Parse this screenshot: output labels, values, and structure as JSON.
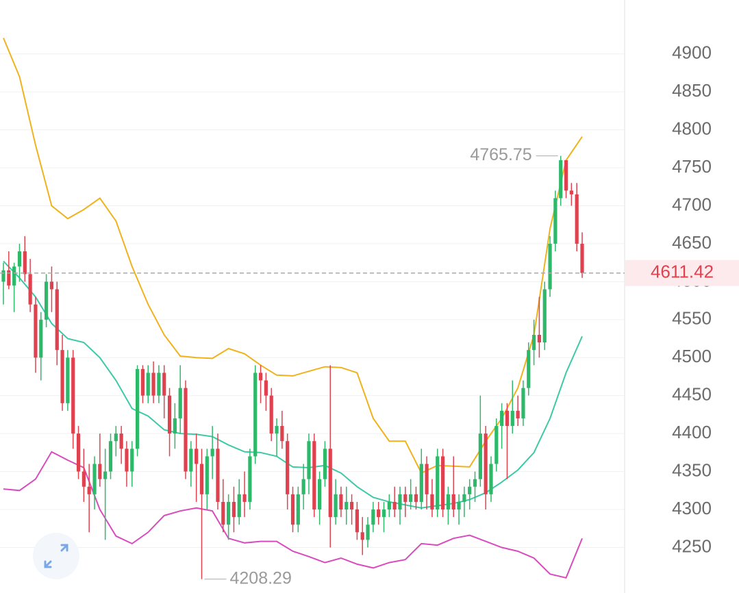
{
  "chart_data": {
    "type": "candlestick",
    "up_color": "#2eb86a",
    "down_color": "#e0414f",
    "candles": {
      "open": [
        4600,
        4615,
        4595,
        4620,
        4640,
        4610,
        4570,
        4500,
        4550,
        4600,
        4590,
        4510,
        4440,
        4500,
        4400,
        4350,
        4330,
        4320,
        4360,
        4340,
        4350,
        4390,
        4400,
        4380,
        4350,
        4380,
        4485,
        4450,
        4480,
        4450,
        4480,
        4450,
        4400,
        4420,
        4460,
        4350,
        4380,
        4360,
        4320,
        4370,
        4380,
        4310,
        4280,
        4310,
        4290,
        4320,
        4310,
        4370,
        4480,
        4470,
        4450,
        4400,
        4410,
        4390,
        4320,
        4280,
        4320,
        4340,
        4390,
        4300,
        4340,
        4380,
        4290,
        4320,
        4300,
        4310,
        4300,
        4270,
        4260,
        4280,
        4300,
        4290,
        4300,
        4310,
        4300,
        4320,
        4310,
        4320,
        4310,
        4360,
        4320,
        4300,
        4370,
        4300,
        4320,
        4300,
        4310,
        4320,
        4330,
        4340,
        4400,
        4320,
        4360,
        4410,
        4430,
        4410,
        4430,
        4420,
        4460,
        4510,
        4530,
        4520,
        4590,
        4650,
        4710,
        4760,
        4720,
        4715,
        4650
      ],
      "high": [
        4625,
        4640,
        4625,
        4650,
        4660,
        4630,
        4580,
        4560,
        4610,
        4620,
        4600,
        4530,
        4510,
        4510,
        4410,
        4380,
        4360,
        4370,
        4400,
        4380,
        4400,
        4410,
        4410,
        4390,
        4390,
        4490,
        4490,
        4490,
        4495,
        4490,
        4490,
        4460,
        4440,
        4490,
        4470,
        4390,
        4400,
        4380,
        4380,
        4410,
        4400,
        4340,
        4320,
        4330,
        4340,
        4350,
        4380,
        4490,
        4490,
        4480,
        4460,
        4420,
        4430,
        4400,
        4330,
        4330,
        4360,
        4400,
        4400,
        4350,
        4390,
        4490,
        4340,
        4330,
        4330,
        4320,
        4310,
        4290,
        4290,
        4310,
        4310,
        4310,
        4320,
        4330,
        4330,
        4330,
        4340,
        4330,
        4380,
        4370,
        4340,
        4380,
        4380,
        4330,
        4370,
        4320,
        4330,
        4340,
        4350,
        4450,
        4410,
        4370,
        4420,
        4440,
        4440,
        4470,
        4450,
        4470,
        4520,
        4550,
        4580,
        4600,
        4660,
        4720,
        4765.75,
        4760,
        4730,
        4730,
        4665
      ],
      "low": [
        4570,
        4590,
        4560,
        4600,
        4600,
        4560,
        4480,
        4470,
        4540,
        4560,
        4490,
        4430,
        4430,
        4380,
        4340,
        4310,
        4270,
        4300,
        4330,
        4260,
        4340,
        4370,
        4360,
        4330,
        4330,
        4370,
        4440,
        4440,
        4440,
        4440,
        4420,
        4370,
        4380,
        4400,
        4340,
        4330,
        4310,
        4208.29,
        4300,
        4340,
        4300,
        4270,
        4260,
        4270,
        4280,
        4290,
        4300,
        4360,
        4440,
        4430,
        4390,
        4370,
        4380,
        4300,
        4270,
        4270,
        4300,
        4320,
        4290,
        4280,
        4330,
        4250,
        4280,
        4290,
        4280,
        4280,
        4260,
        4240,
        4250,
        4270,
        4280,
        4270,
        4290,
        4290,
        4280,
        4290,
        4300,
        4300,
        4300,
        4300,
        4290,
        4290,
        4290,
        4280,
        4290,
        4280,
        4290,
        4300,
        4310,
        4330,
        4300,
        4310,
        4350,
        4380,
        4340,
        4400,
        4410,
        4410,
        4450,
        4490,
        4500,
        4510,
        4580,
        4640,
        4700,
        4710,
        4700,
        4640,
        4605
      ],
      "close": [
        4615,
        4595,
        4620,
        4640,
        4610,
        4570,
        4500,
        4550,
        4600,
        4590,
        4510,
        4440,
        4500,
        4400,
        4350,
        4330,
        4320,
        4360,
        4340,
        4350,
        4390,
        4400,
        4380,
        4350,
        4380,
        4485,
        4450,
        4480,
        4450,
        4480,
        4450,
        4400,
        4420,
        4460,
        4350,
        4380,
        4360,
        4320,
        4370,
        4380,
        4310,
        4280,
        4310,
        4290,
        4320,
        4310,
        4370,
        4480,
        4470,
        4450,
        4400,
        4410,
        4390,
        4320,
        4280,
        4320,
        4340,
        4390,
        4300,
        4340,
        4380,
        4290,
        4320,
        4300,
        4310,
        4300,
        4270,
        4260,
        4280,
        4300,
        4290,
        4300,
        4310,
        4300,
        4320,
        4310,
        4320,
        4310,
        4360,
        4320,
        4300,
        4370,
        4300,
        4320,
        4300,
        4310,
        4320,
        4330,
        4340,
        4400,
        4320,
        4360,
        4410,
        4430,
        4410,
        4430,
        4420,
        4460,
        4510,
        4530,
        4520,
        4590,
        4650,
        4710,
        4760,
        4720,
        4715,
        4650,
        4611.42
      ]
    },
    "bands": [
      {
        "name": "upper",
        "color": "#f0b21a",
        "x": [
          0,
          3,
          6,
          9,
          12,
          15,
          18,
          21,
          24,
          27,
          30,
          33,
          36,
          39,
          42,
          45,
          48,
          51,
          54,
          57,
          60,
          63,
          66,
          69,
          72,
          75,
          78,
          81,
          84,
          87,
          90,
          93,
          96,
          99,
          102,
          105,
          108
        ],
        "values": [
          4921,
          4870,
          4780,
          4700,
          4683,
          4695,
          4710,
          4680,
          4620,
          4570,
          4530,
          4502,
          4500,
          4499,
          4512,
          4505,
          4490,
          4477,
          4476,
          4482,
          4488,
          4487,
          4480,
          4420,
          4390,
          4390,
          4348,
          4358,
          4357,
          4356,
          4390,
          4420,
          4460,
          4530,
          4670,
          4760,
          4791
        ]
      },
      {
        "name": "middle",
        "color": "#3cc9a6",
        "x": [
          0,
          3,
          6,
          9,
          12,
          15,
          18,
          21,
          24,
          27,
          30,
          33,
          36,
          39,
          42,
          45,
          48,
          51,
          54,
          57,
          60,
          63,
          66,
          69,
          72,
          75,
          78,
          81,
          84,
          87,
          90,
          93,
          96,
          99,
          102,
          105,
          108
        ],
        "values": [
          4627,
          4605,
          4580,
          4545,
          4525,
          4520,
          4500,
          4470,
          4433,
          4423,
          4405,
          4400,
          4399,
          4396,
          4385,
          4376,
          4375,
          4370,
          4356,
          4355,
          4358,
          4348,
          4330,
          4316,
          4310,
          4306,
          4302,
          4305,
          4308,
          4313,
          4322,
          4336,
          4352,
          4375,
          4420,
          4480,
          4528
        ]
      },
      {
        "name": "lower",
        "color": "#d94bbd",
        "x": [
          0,
          3,
          6,
          9,
          12,
          15,
          18,
          21,
          24,
          27,
          30,
          33,
          36,
          39,
          42,
          45,
          48,
          51,
          54,
          57,
          60,
          63,
          66,
          69,
          72,
          75,
          78,
          81,
          84,
          87,
          90,
          93,
          96,
          99,
          102,
          105,
          108
        ],
        "values": [
          4327,
          4325,
          4340,
          4376,
          4365,
          4355,
          4300,
          4265,
          4255,
          4270,
          4292,
          4298,
          4302,
          4298,
          4262,
          4256,
          4258,
          4258,
          4245,
          4238,
          4230,
          4236,
          4228,
          4223,
          4230,
          4234,
          4255,
          4253,
          4262,
          4266,
          4258,
          4250,
          4245,
          4236,
          4215,
          4210,
          4262
        ]
      }
    ],
    "xlim": [
      0,
      108
    ],
    "ylim": [
      4190,
      4971
    ],
    "yticks": [
      4250,
      4300,
      4350,
      4400,
      4450,
      4500,
      4550,
      4600,
      4650,
      4700,
      4750,
      4800,
      4850,
      4900
    ],
    "grid": true,
    "high_marker": 4765.75,
    "low_marker": 4208.29,
    "last_price": 4611.42
  }
}
